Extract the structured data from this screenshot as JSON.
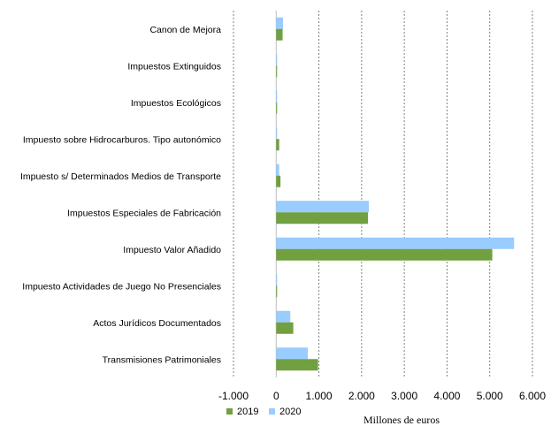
{
  "chart_data": {
    "type": "bar",
    "orientation": "horizontal",
    "categories": [
      "Canon de Mejora",
      "Impuestos Extinguidos",
      "Impuestos Ecológicos",
      "Impuesto sobre Hidrocarburos. Tipo autonómico",
      "Impuesto s/ Determinados Medios de Transporte",
      "Impuestos Especiales de Fabricación",
      "Impuesto Valor Añadido",
      "Impuesto Actividades de Juego No Presenciales",
      "Actos Jurídicos Documentados",
      "Transmisiones Patrimoniales"
    ],
    "series": [
      {
        "name": "2019",
        "color": "#70a040",
        "values": [
          150,
          5,
          15,
          70,
          100,
          2150,
          5060,
          20,
          400,
          980
        ]
      },
      {
        "name": "2020",
        "color": "#99ccff",
        "values": [
          160,
          3,
          10,
          20,
          70,
          2170,
          5570,
          10,
          330,
          740
        ]
      }
    ],
    "xlabel": "Millones de euros",
    "ylabel": "",
    "xlim": [
      -1000,
      6000
    ],
    "xticks": [
      -1000,
      0,
      1000,
      2000,
      3000,
      4000,
      5000,
      6000
    ],
    "xtick_labels": [
      "-1.000",
      "0",
      "1.000",
      "2.000",
      "3.000",
      "4.000",
      "5.000",
      "6.000"
    ],
    "grid": "vertical-dashed",
    "legend": "bottom-left"
  }
}
